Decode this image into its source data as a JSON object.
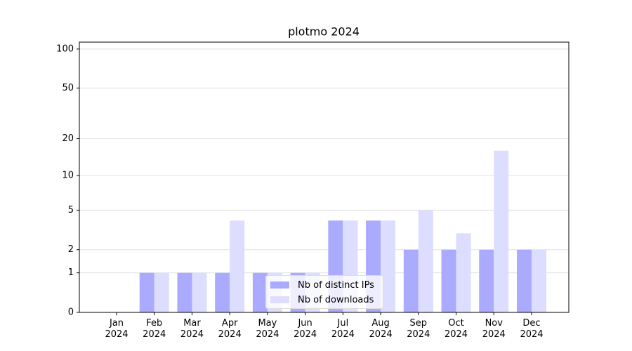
{
  "chart_data": {
    "type": "bar",
    "title": "plotmo 2024",
    "categories": [
      "Jan\n2024",
      "Feb\n2024",
      "Mar\n2024",
      "Apr\n2024",
      "May\n2024",
      "Jun\n2024",
      "Jul\n2024",
      "Aug\n2024",
      "Sep\n2024",
      "Oct\n2024",
      "Nov\n2024",
      "Dec\n2024"
    ],
    "series": [
      {
        "name": "Nb of distinct IPs",
        "color": "#aaaaff",
        "values": [
          0,
          1,
          1,
          1,
          1,
          1,
          4,
          4,
          2,
          2,
          2,
          2
        ]
      },
      {
        "name": "Nb of downloads",
        "color": "#ddddff",
        "values": [
          0,
          1,
          1,
          4,
          1,
          1,
          4,
          4,
          5,
          3,
          16,
          2
        ]
      }
    ],
    "yscale": "log1p",
    "ylim": [
      0,
      113
    ],
    "yticks": [
      0,
      1,
      2,
      5,
      10,
      20,
      50,
      100
    ],
    "grid": true,
    "legend": "lower center"
  }
}
